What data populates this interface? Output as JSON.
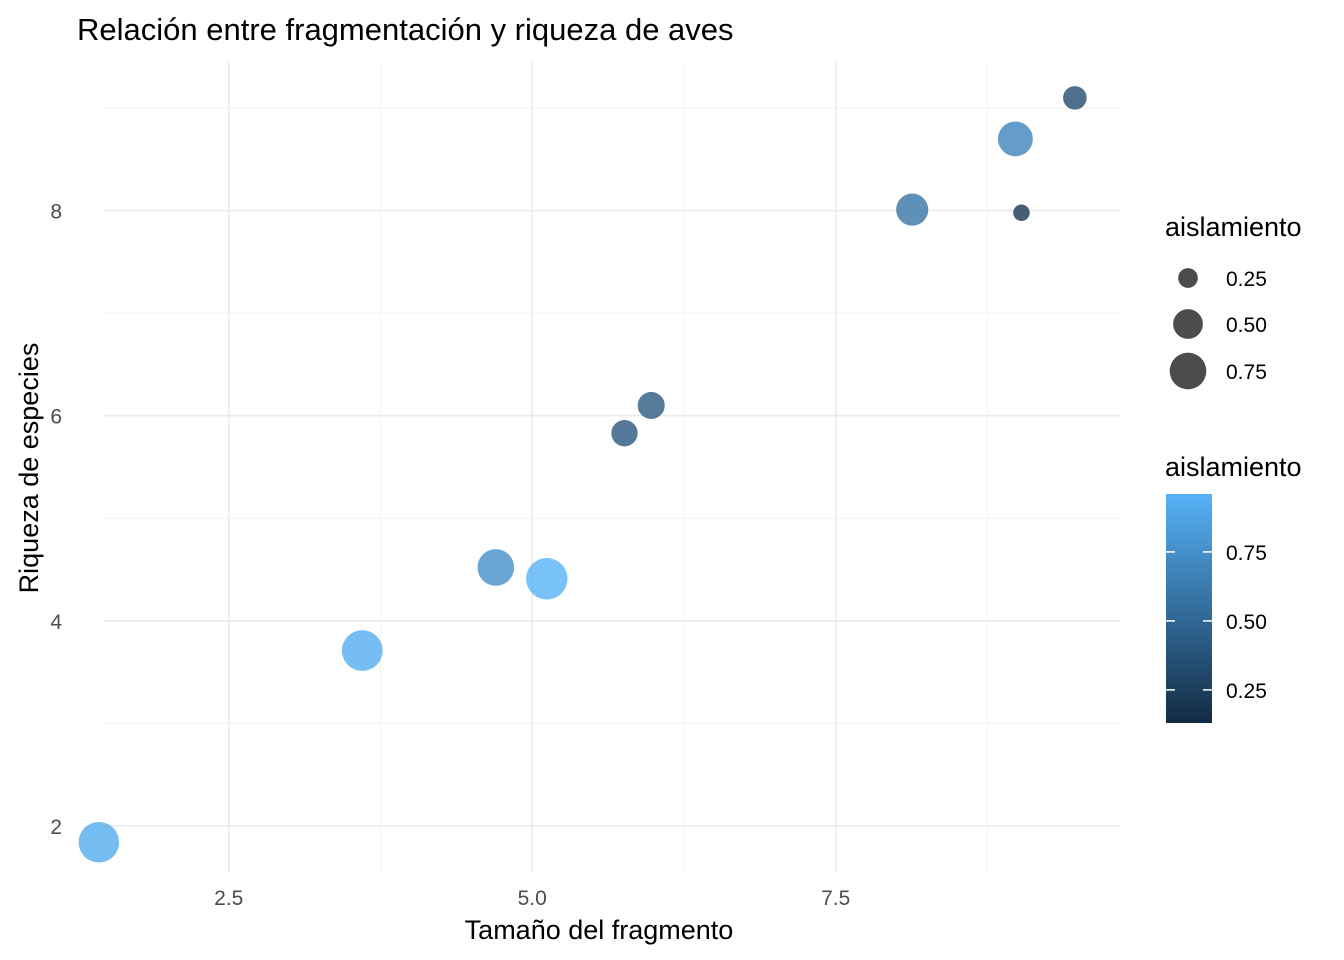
{
  "chart_data": {
    "type": "scatter",
    "title": "Relación entre fragmentación y riqueza de aves",
    "xlabel": "Tamaño del fragmento",
    "ylabel": "Riqueza de especies",
    "xlim": [
      1.25,
      9.85
    ],
    "ylim": [
      1.55,
      9.45
    ],
    "x_ticks": [
      2.5,
      5.0,
      7.5
    ],
    "x_tick_labels": [
      "2.5",
      "5.0",
      "7.5"
    ],
    "y_ticks": [
      2,
      4,
      6,
      8
    ],
    "y_tick_labels": [
      "2",
      "4",
      "6",
      "8"
    ],
    "grid": true,
    "points": [
      {
        "x": 1.43,
        "y": 1.84,
        "aislamiento": 0.92
      },
      {
        "x": 3.6,
        "y": 3.71,
        "aislamiento": 0.93
      },
      {
        "x": 4.7,
        "y": 4.52,
        "aislamiento": 0.75
      },
      {
        "x": 5.12,
        "y": 4.41,
        "aislamiento": 0.96
      },
      {
        "x": 5.76,
        "y": 5.83,
        "aislamiento": 0.4
      },
      {
        "x": 5.98,
        "y": 6.1,
        "aislamiento": 0.42
      },
      {
        "x": 8.13,
        "y": 8.01,
        "aislamiento": 0.58
      },
      {
        "x": 8.98,
        "y": 8.7,
        "aislamiento": 0.68
      },
      {
        "x": 9.03,
        "y": 7.98,
        "aislamiento": 0.2
      },
      {
        "x": 9.47,
        "y": 9.1,
        "aislamiento": 0.33
      }
    ],
    "size_legend": {
      "title": "aislamiento",
      "breaks": [
        0.25,
        0.5,
        0.75
      ],
      "labels": [
        "0.25",
        "0.50",
        "0.75"
      ]
    },
    "color_legend": {
      "title": "aislamiento",
      "range": [
        0.13,
        0.96
      ],
      "breaks": [
        0.25,
        0.5,
        0.75
      ],
      "labels": [
        "0.25",
        "0.50",
        "0.75"
      ],
      "low_color": "#132B43",
      "high_color": "#56B1F7"
    }
  }
}
